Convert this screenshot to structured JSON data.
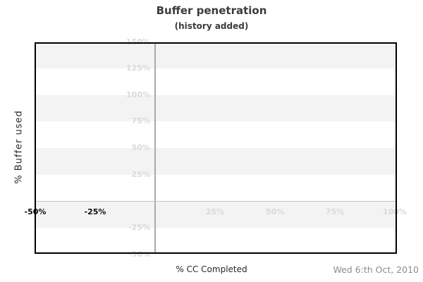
{
  "chart_data": {
    "type": "line",
    "title": "Buffer penetration",
    "subtitle": "(history added)",
    "xlabel": "% CC Completed",
    "ylabel": "% Buffer used",
    "date_note": "Wed 6:th Oct, 2010",
    "xlim": [
      -50,
      100
    ],
    "ylim": [
      -49,
      149
    ],
    "series": [],
    "x_axis": {
      "ticks": [
        {
          "label": "-50%",
          "value": -50,
          "emphasized": true
        },
        {
          "label": "-25%",
          "value": -25,
          "emphasized": true
        },
        {
          "label": "25%",
          "value": 25,
          "emphasized": false
        },
        {
          "label": "50%",
          "value": 50,
          "emphasized": false
        },
        {
          "label": "75%",
          "value": 75,
          "emphasized": false
        },
        {
          "label": "100%",
          "value": 100,
          "emphasized": false
        }
      ]
    },
    "y_axis": {
      "ticks": [
        {
          "label": "150%",
          "value": 150
        },
        {
          "label": "125%",
          "value": 125
        },
        {
          "label": "100%",
          "value": 100
        },
        {
          "label": "75%",
          "value": 75
        },
        {
          "label": "50%",
          "value": 50
        },
        {
          "label": "25%",
          "value": 25
        },
        {
          "label": "-25%",
          "value": -25
        },
        {
          "label": "-50%",
          "value": -50
        }
      ]
    },
    "grid": {
      "gray_band_upper_values": [
        150,
        100,
        50,
        0
      ],
      "zero_line_vertical": true,
      "zero_line_horizontal": true
    },
    "legend": null
  },
  "colors": {
    "background": "#ffffff",
    "stripe": "#f3f3f3",
    "tick_label_muted": "#dadada",
    "tick_label_emphasis": "#0d0d0d",
    "axis_frame": "#000000",
    "zero_line_horizontal": "#c4c4c4",
    "zero_line_vertical": "#a9a9a9",
    "title_text": "#3b3b3b",
    "axis_title_text": "#2a2a2a",
    "date_text": "#8c8c8c"
  }
}
